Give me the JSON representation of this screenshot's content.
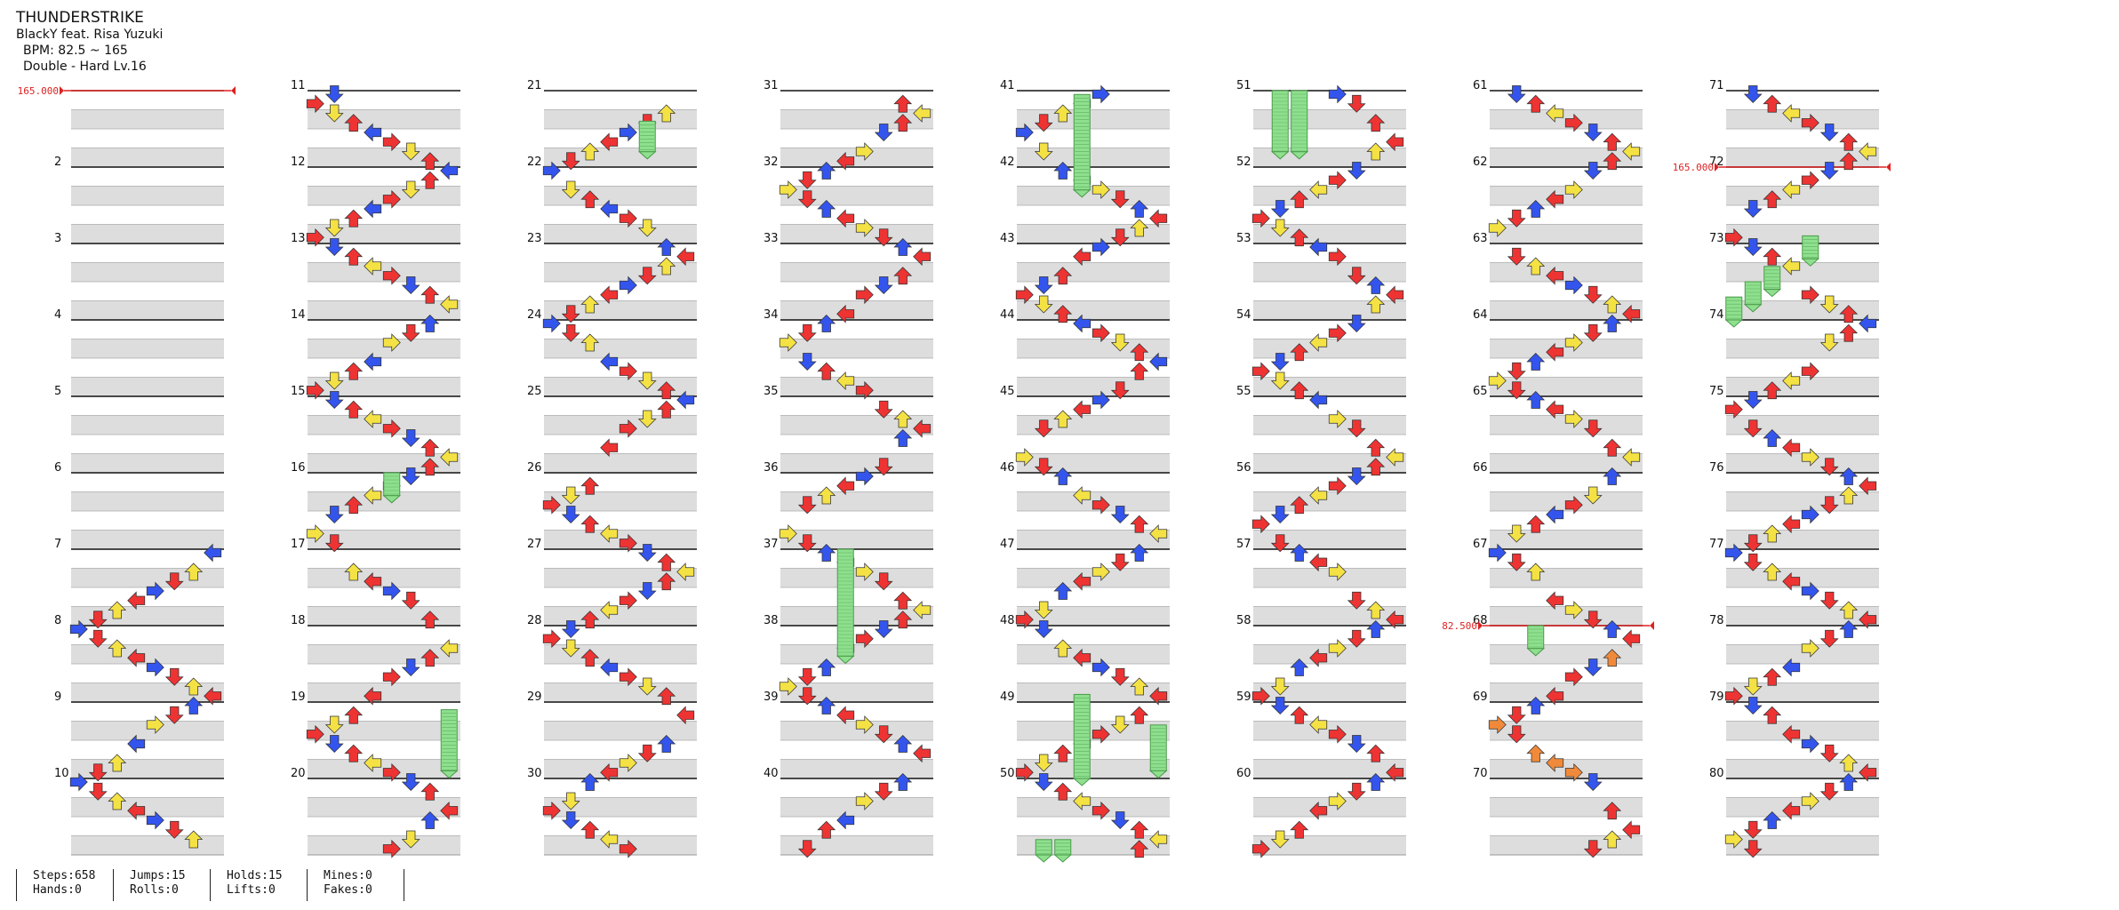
{
  "header": {
    "title": "THUNDERSTRIKE",
    "artist": "BlackY feat. Risa Yuzuki",
    "bpm": "BPM: 82.5 ~ 165",
    "difficulty": "Double - Hard  Lv.16"
  },
  "colors": {
    "red_arrow": "#ee3333",
    "blue_arrow": "#3355ee",
    "yellow_arrow": "#f4e245",
    "orange_arrow": "#f08a3a",
    "hold_green": "#8ee08e",
    "bpm_line": "#dd2222",
    "row_shade": "#dddddd"
  },
  "measure_numbers": [
    "2",
    "3",
    "4",
    "5",
    "6",
    "7",
    "8",
    "9",
    "10",
    "11",
    "12",
    "13",
    "14",
    "15",
    "16",
    "17",
    "18",
    "19",
    "20",
    "21",
    "22",
    "23",
    "24",
    "25",
    "26",
    "27",
    "28",
    "29",
    "30",
    "31",
    "32",
    "33",
    "34",
    "35",
    "36",
    "37",
    "38",
    "39",
    "40",
    "41",
    "42",
    "43",
    "44",
    "45",
    "46",
    "47",
    "48",
    "49",
    "50",
    "51",
    "52",
    "53",
    "54",
    "55",
    "56",
    "57",
    "58",
    "59",
    "60",
    "61",
    "62",
    "63",
    "64",
    "65",
    "66",
    "67",
    "68",
    "69",
    "70",
    "71",
    "72",
    "73",
    "74",
    "75",
    "76",
    "77",
    "78",
    "79",
    "80"
  ],
  "bpm_changes": [
    {
      "label": "165.000",
      "measure": 1
    },
    {
      "label": "82.500",
      "measure": 68
    },
    {
      "label": "165.000",
      "measure": 72
    }
  ],
  "stats": {
    "steps": "Steps:658",
    "hands": "Hands:0",
    "jumps": "Jumps:15",
    "rolls": "Rolls:0",
    "holds": "Holds:15",
    "lifts": "Lifts:0",
    "mines": "Mines:0",
    "fakes": "Fakes:0"
  }
}
